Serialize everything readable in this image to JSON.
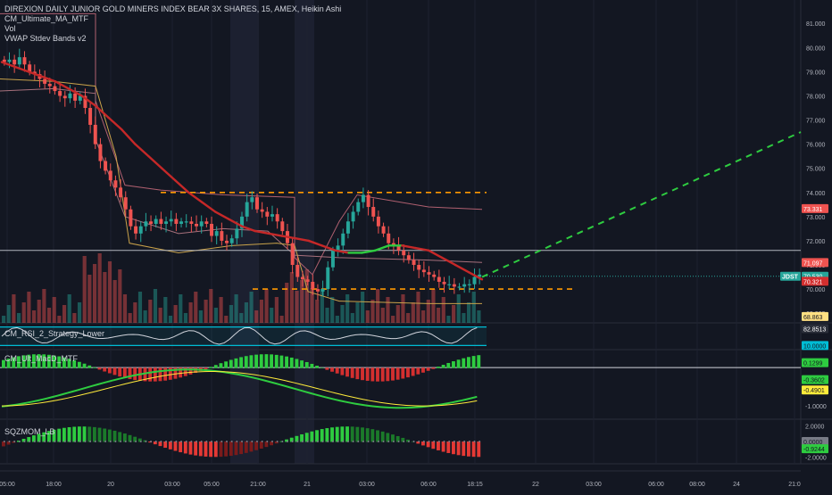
{
  "legend": {
    "symbol_line": "DIREXION DAILY JUNIOR GOLD MINERS INDEX BEAR 3X SHARES, 15, AMEX, Heikin Ashi",
    "indicator_1": "CM_Ultimate_MA_MTF",
    "indicator_2": "Vol",
    "indicator_3": "VWAP Stdev Bands v2"
  },
  "panes": {
    "rsi_title": "CM_RSI_2_Strategy_Lower",
    "macd_title": "CM_Ult_MacD_MTF",
    "sqz_title": "SQZMOM_LB"
  },
  "colors": {
    "background": "#131722",
    "bull_candle": "#26a69a",
    "bear_candle": "#ef5350",
    "ma_line_red": "#c62828",
    "ma_line_green": "#2ecc40",
    "vwap_band": "#b06070",
    "orange_level": "#ff9800",
    "projection": "#2ecc40"
  },
  "chart_data": [
    {
      "type": "candlestick",
      "title": "DIREXION DAILY JUNIOR GOLD MINERS INDEX BEAR 3X SHARES, 15, AMEX, Heikin Ashi",
      "x_ticks": [
        "05:00",
        "18:00",
        "20",
        "03:00",
        "05:00",
        "21:00",
        "21",
        "03:00",
        "06:00",
        "18:15",
        "22",
        "03:00",
        "06:00",
        "08:00",
        "24",
        "21:0"
      ],
      "y_ticks": [
        "81.000",
        "80.000",
        "79.000",
        "78.000",
        "77.000",
        "76.000",
        "75.000",
        "74.000",
        "73.000",
        "72.000",
        "71.000",
        "70.000",
        "69.000"
      ],
      "ylim": [
        68.6,
        81.6
      ],
      "price_labels": [
        {
          "text": "73.331",
          "value": 73.331,
          "color": "#ef5350",
          "text_color": "#ffffff"
        },
        {
          "text": "71.097",
          "value": 71.097,
          "color": "#ef5350",
          "text_color": "#ffffff"
        },
        {
          "text": "JDST",
          "value": 70.53,
          "color": "#26a69a",
          "text_color": "#ffffff"
        },
        {
          "text": "70.530",
          "value": 70.53,
          "color": "#26a69a",
          "text_color": "#ffffff"
        },
        {
          "text": "70.321",
          "value": 70.321,
          "color": "#d32f2f",
          "text_color": "#ffffff"
        },
        {
          "text": "68.863",
          "value": 68.863,
          "color": "#ffe082",
          "text_color": "#131722"
        }
      ],
      "horizontal_levels": [
        {
          "value": 74.0,
          "style": "dashed",
          "color": "#ff9800",
          "from": 180,
          "to": 545
        },
        {
          "value": 70.0,
          "style": "dashed",
          "color": "#ff9800",
          "from": 283,
          "to": 643
        },
        {
          "value": 71.6,
          "style": "solid",
          "color": "#b2b5be",
          "from": 0,
          "to": 897
        },
        {
          "value": 70.53,
          "style": "dotted",
          "color": "#26a69a",
          "from": 545,
          "to": 897
        }
      ],
      "projection_line": {
        "from": [
          540,
          70.5
        ],
        "to": [
          897,
          76.5
        ]
      },
      "candles_close": [
        79.4,
        79.5,
        79.3,
        79.6,
        79.3,
        79.0,
        78.9,
        78.7,
        78.5,
        78.4,
        78.2,
        78.0,
        77.9,
        78.1,
        77.8,
        78.0,
        77.5,
        76.8,
        76.0,
        75.3,
        74.9,
        74.5,
        74.2,
        73.8,
        73.3,
        72.6,
        72.3,
        72.6,
        72.8,
        72.7,
        72.9,
        72.7,
        72.8,
        72.9,
        72.7,
        72.8,
        72.8,
        72.7,
        72.6,
        72.8,
        72.7,
        72.2,
        72.4,
        72.0,
        71.9,
        72.1,
        72.5,
        73.0,
        73.6,
        73.8,
        73.3,
        73.2,
        73.0,
        73.1,
        72.8,
        72.4,
        71.9,
        71.0,
        70.5,
        70.4,
        70.3,
        70.0,
        69.9,
        70.0,
        70.9,
        71.6,
        71.8,
        72.3,
        72.8,
        73.2,
        73.6,
        73.9,
        73.4,
        73.0,
        72.6,
        72.3,
        71.9,
        71.8,
        71.6,
        71.4,
        71.2,
        71.0,
        70.8,
        70.7,
        70.6,
        70.5,
        70.3,
        70.2,
        70.2,
        70.1,
        70.1,
        70.2,
        70.2,
        70.5,
        70.6
      ],
      "ma_values": [
        79.4,
        79.2,
        79.0,
        78.8,
        78.6,
        78.3,
        78.0,
        77.6,
        77.1,
        76.6,
        76.0,
        75.5,
        75.0,
        74.5,
        74.0,
        73.6,
        73.2,
        72.9,
        72.6,
        72.4,
        72.3,
        72.2,
        72.1,
        72.0,
        71.8,
        71.6,
        71.5,
        71.5,
        71.6,
        71.8,
        71.8,
        71.7,
        71.6,
        71.3,
        71.0,
        70.7,
        70.4
      ],
      "volume_max": 1.0
    },
    {
      "type": "line",
      "title": "CM_RSI_2_Strategy_Lower",
      "y_ticks": [
        "82.8513",
        "10.0000"
      ],
      "ylim": [
        0,
        100
      ],
      "levels": [
        90,
        10
      ]
    },
    {
      "type": "bar",
      "title": "CM_Ult_MacD_MTF",
      "y_ticks": [
        "0.1299",
        "-0.3602",
        "-0.4901",
        "-1.0000"
      ],
      "ylim": [
        -1.3,
        0.4
      ],
      "value_labels": [
        {
          "text": "0.1299",
          "color": "#2ecc40"
        },
        {
          "text": "-0.3602",
          "color": "#2ecc40"
        },
        {
          "text": "-0.4901",
          "color": "#ffeb3b"
        }
      ]
    },
    {
      "type": "bar",
      "title": "SQZMOM_LB",
      "y_ticks": [
        "2.0000",
        "0.0000",
        "-0.9244",
        "-2.0000"
      ],
      "ylim": [
        -2.6,
        2.6
      ],
      "value_labels": [
        {
          "text": "0.0000",
          "color": "#787b86"
        },
        {
          "text": "-0.9244",
          "color": "#2ecc40"
        }
      ]
    }
  ]
}
